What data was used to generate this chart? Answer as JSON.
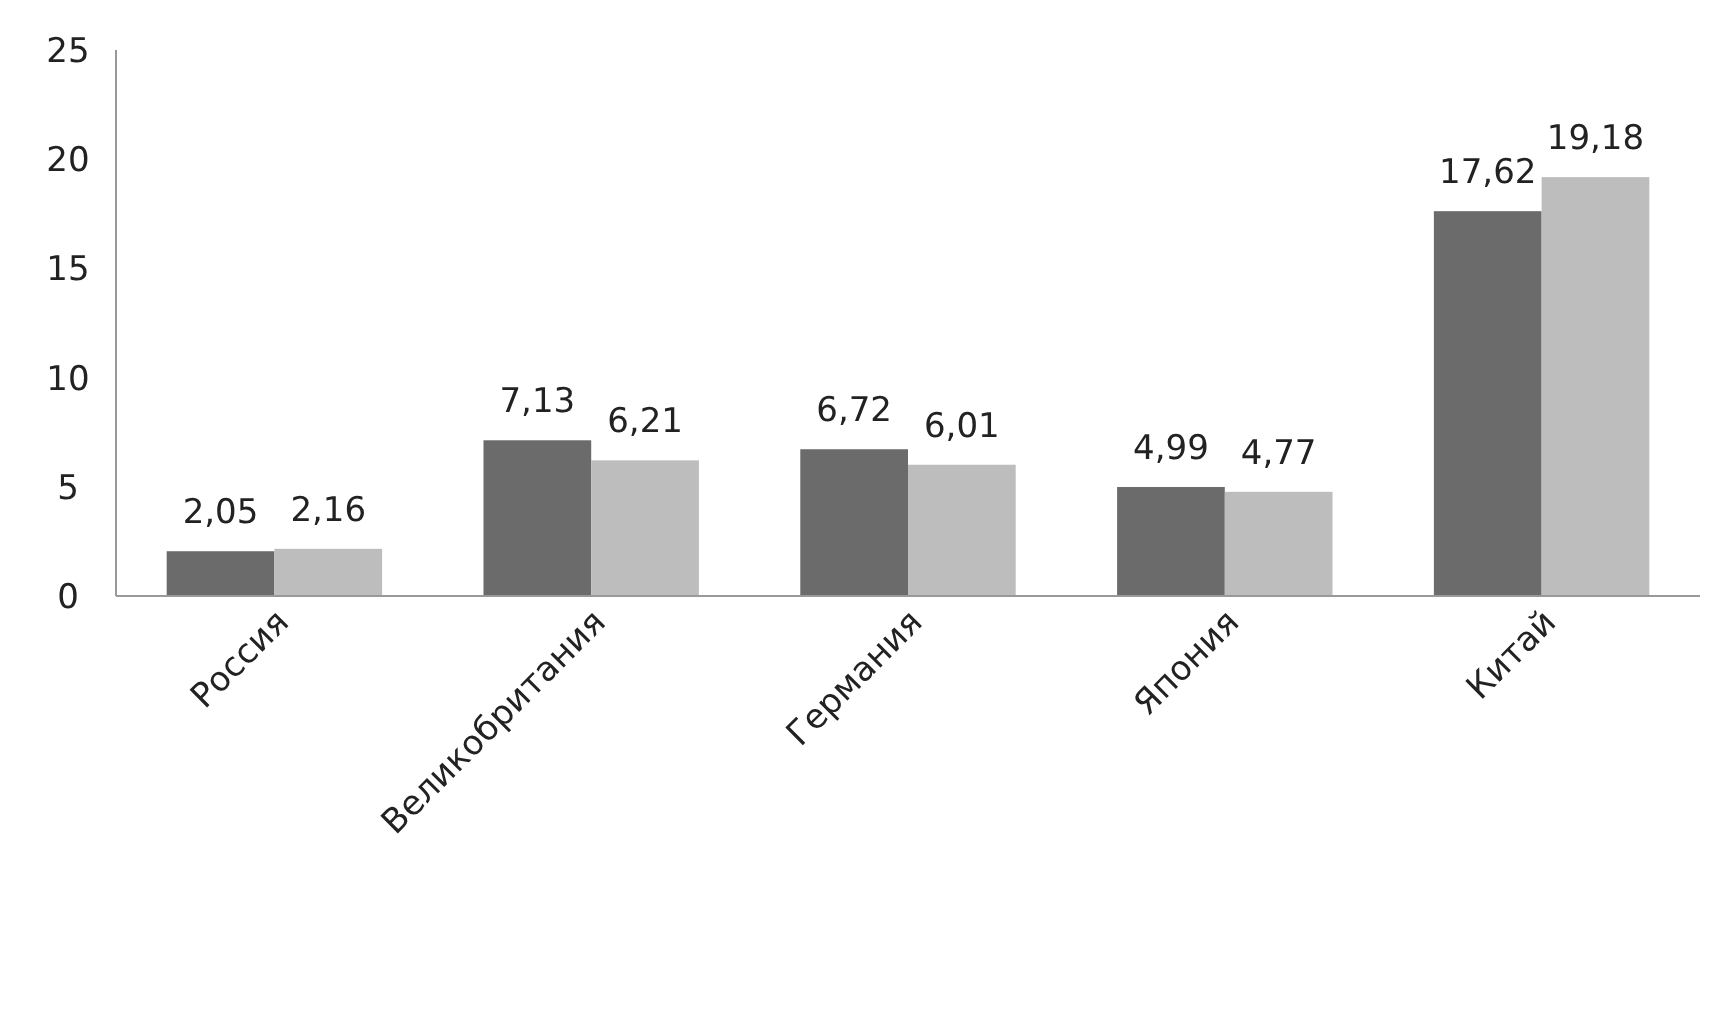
{
  "chart_data": {
    "type": "bar",
    "categories": [
      "Россия",
      "Великобритания",
      "Германия",
      "Япония",
      "Китай"
    ],
    "series": [
      {
        "color": "#6b6b6b",
        "values": [
          2.05,
          7.13,
          6.72,
          4.99,
          17.62
        ],
        "value_labels": [
          "2,05",
          "7,13",
          "6,72",
          "4,99",
          "17,62"
        ]
      },
      {
        "color": "#bdbdbd",
        "values": [
          2.16,
          6.21,
          6.01,
          4.77,
          19.18
        ],
        "value_labels": [
          "2,16",
          "6,21",
          "6,01",
          "4,77",
          "19,18"
        ]
      }
    ],
    "ylim": [
      0,
      25
    ],
    "yticks": [
      0,
      5,
      10,
      15,
      20,
      25
    ],
    "grid": false
  }
}
